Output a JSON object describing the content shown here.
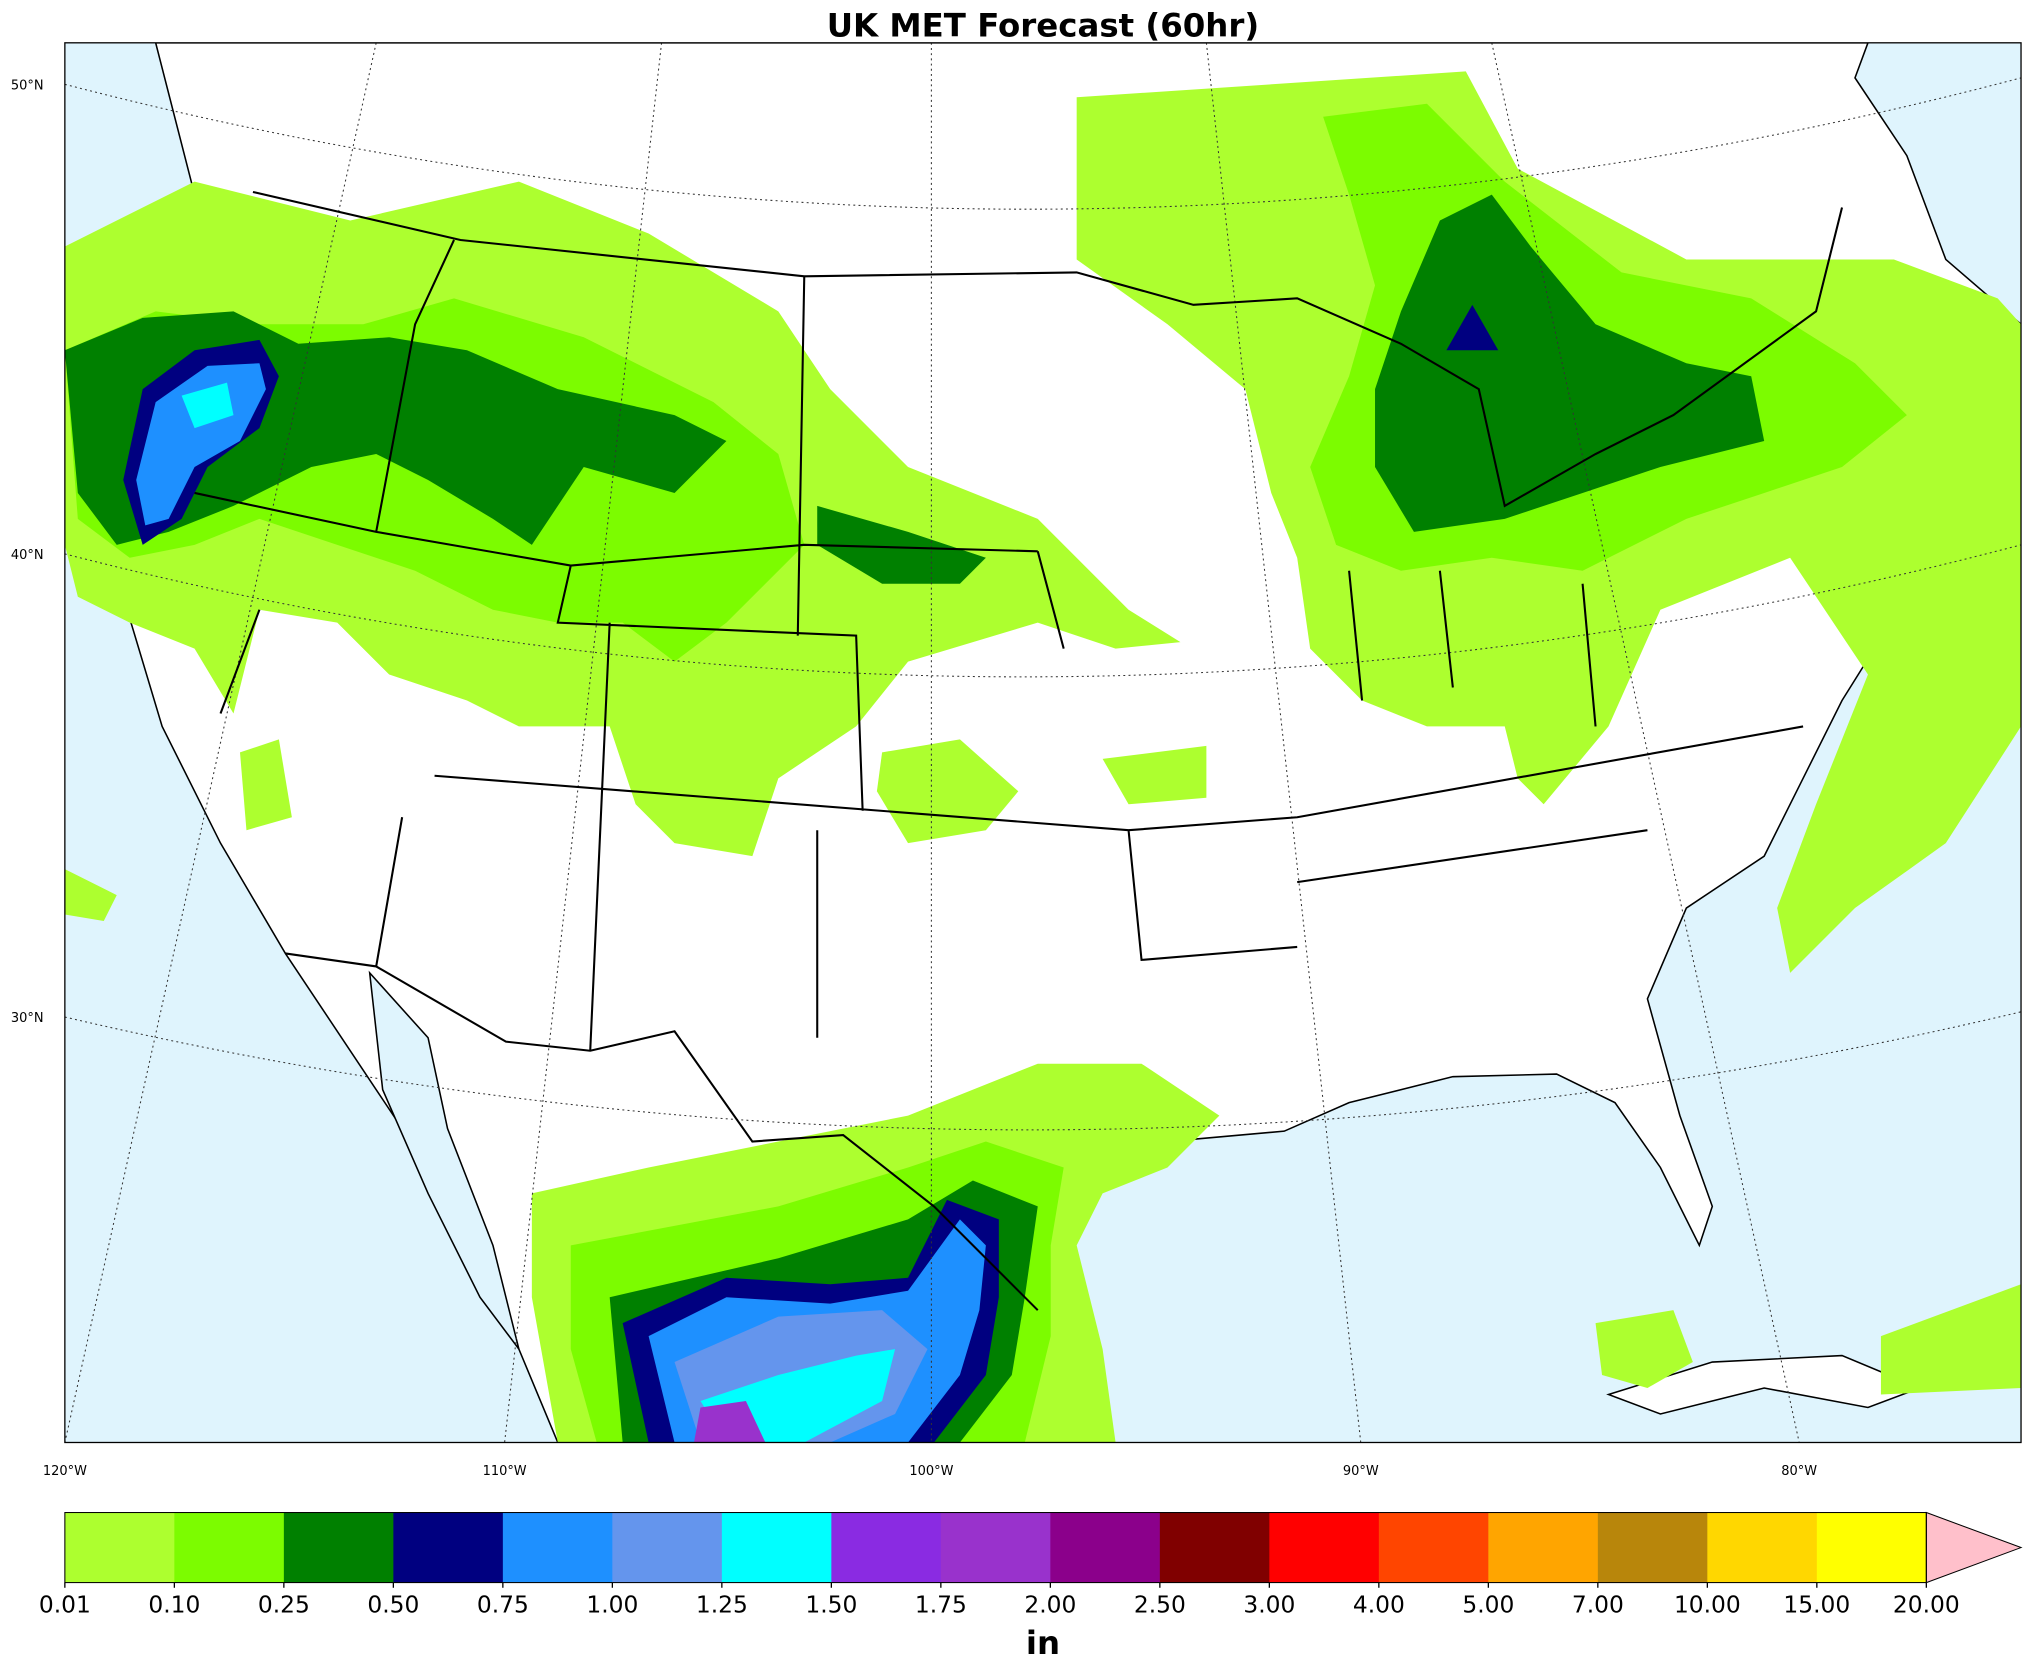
{
  "map": {
    "title": "UK MET Forecast (60hr)",
    "latitude_labels": [
      "50°N",
      "40°N",
      "30°N"
    ],
    "longitude_labels": [
      "120°W",
      "110°W",
      "100°W",
      "90°W",
      "80°W"
    ],
    "colorbar": {
      "ticks": [
        {
          "value": 0.01,
          "label": "0.01"
        },
        {
          "value": 0.1,
          "label": "0.10"
        },
        {
          "value": 0.25,
          "label": "0.25"
        },
        {
          "value": 0.5,
          "label": "0.50"
        },
        {
          "value": 0.75,
          "label": "0.75"
        },
        {
          "value": 1,
          "label": "1.00"
        },
        {
          "value": 1.25,
          "label": "1.25"
        },
        {
          "value": 1.5,
          "label": "1.50"
        },
        {
          "value": 1.75,
          "label": "1.75"
        },
        {
          "value": 2,
          "label": "2.00"
        },
        {
          "value": 2.5,
          "label": "2.50"
        },
        {
          "value": 3,
          "label": "3.00"
        },
        {
          "value": 4,
          "label": "4.00"
        },
        {
          "value": 5,
          "label": "5.00"
        },
        {
          "value": 7,
          "label": "7.00"
        },
        {
          "value": 10,
          "label": "10.00"
        },
        {
          "value": 15,
          "label": "15.00"
        },
        {
          "value": 20,
          "label": "20.00"
        }
      ],
      "colors": [
        "#adff2f",
        "#7cfc00",
        "#008000",
        "#000080",
        "#1e90ff",
        "#6495ed",
        "#00ffff",
        "#8a2be2",
        "#9932cc",
        "#8b008b",
        "#800000",
        "#ff0000",
        "#ff4500",
        "#ffa500",
        "#b8860b",
        "#ffd700",
        "#ffff00"
      ],
      "extend_color": "#ffc0cb",
      "label": "in"
    }
  }
}
